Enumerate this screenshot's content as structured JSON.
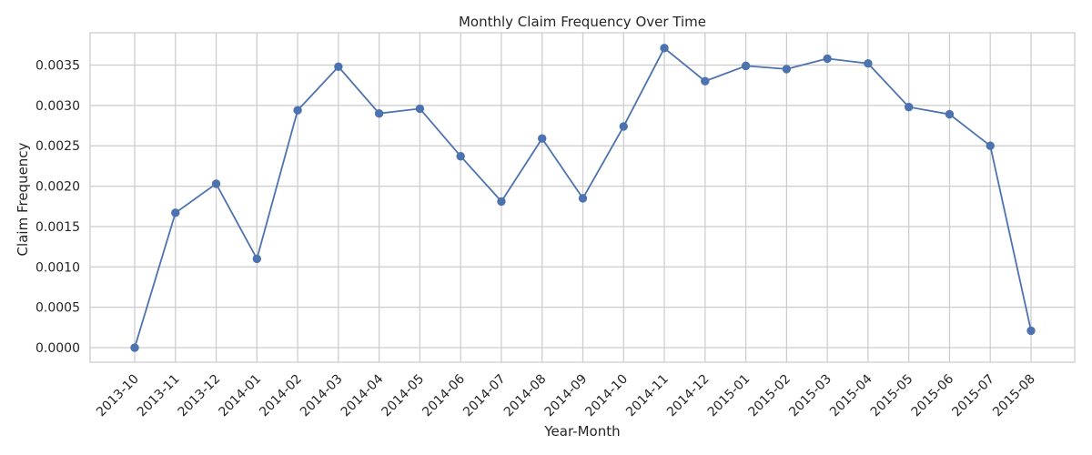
{
  "chart_data": {
    "type": "line",
    "title": "Monthly Claim Frequency Over Time",
    "xlabel": "Year-Month",
    "ylabel": "Claim Frequency",
    "categories": [
      "2013-10",
      "2013-11",
      "2013-12",
      "2014-01",
      "2014-02",
      "2014-03",
      "2014-04",
      "2014-05",
      "2014-06",
      "2014-07",
      "2014-08",
      "2014-09",
      "2014-10",
      "2014-11",
      "2014-12",
      "2015-01",
      "2015-02",
      "2015-03",
      "2015-04",
      "2015-05",
      "2015-06",
      "2015-07",
      "2015-08"
    ],
    "series": [
      {
        "values": [
          0.0,
          0.00167,
          0.00203,
          0.0011,
          0.00294,
          0.00348,
          0.0029,
          0.00296,
          0.00237,
          0.00181,
          0.00259,
          0.00185,
          0.00274,
          0.00371,
          0.0033,
          0.00349,
          0.00345,
          0.00358,
          0.00352,
          0.00298,
          0.00289,
          0.0025,
          0.00021
        ]
      }
    ],
    "y_ticks": [
      "0.0000",
      "0.0005",
      "0.0010",
      "0.0015",
      "0.0020",
      "0.0025",
      "0.0030",
      "0.0035"
    ],
    "ylim": [
      -0.00018,
      0.0039
    ],
    "grid": true,
    "colors": {
      "line": "#4c72b0",
      "grid": "#cccccc",
      "background": "#ffffff"
    }
  }
}
